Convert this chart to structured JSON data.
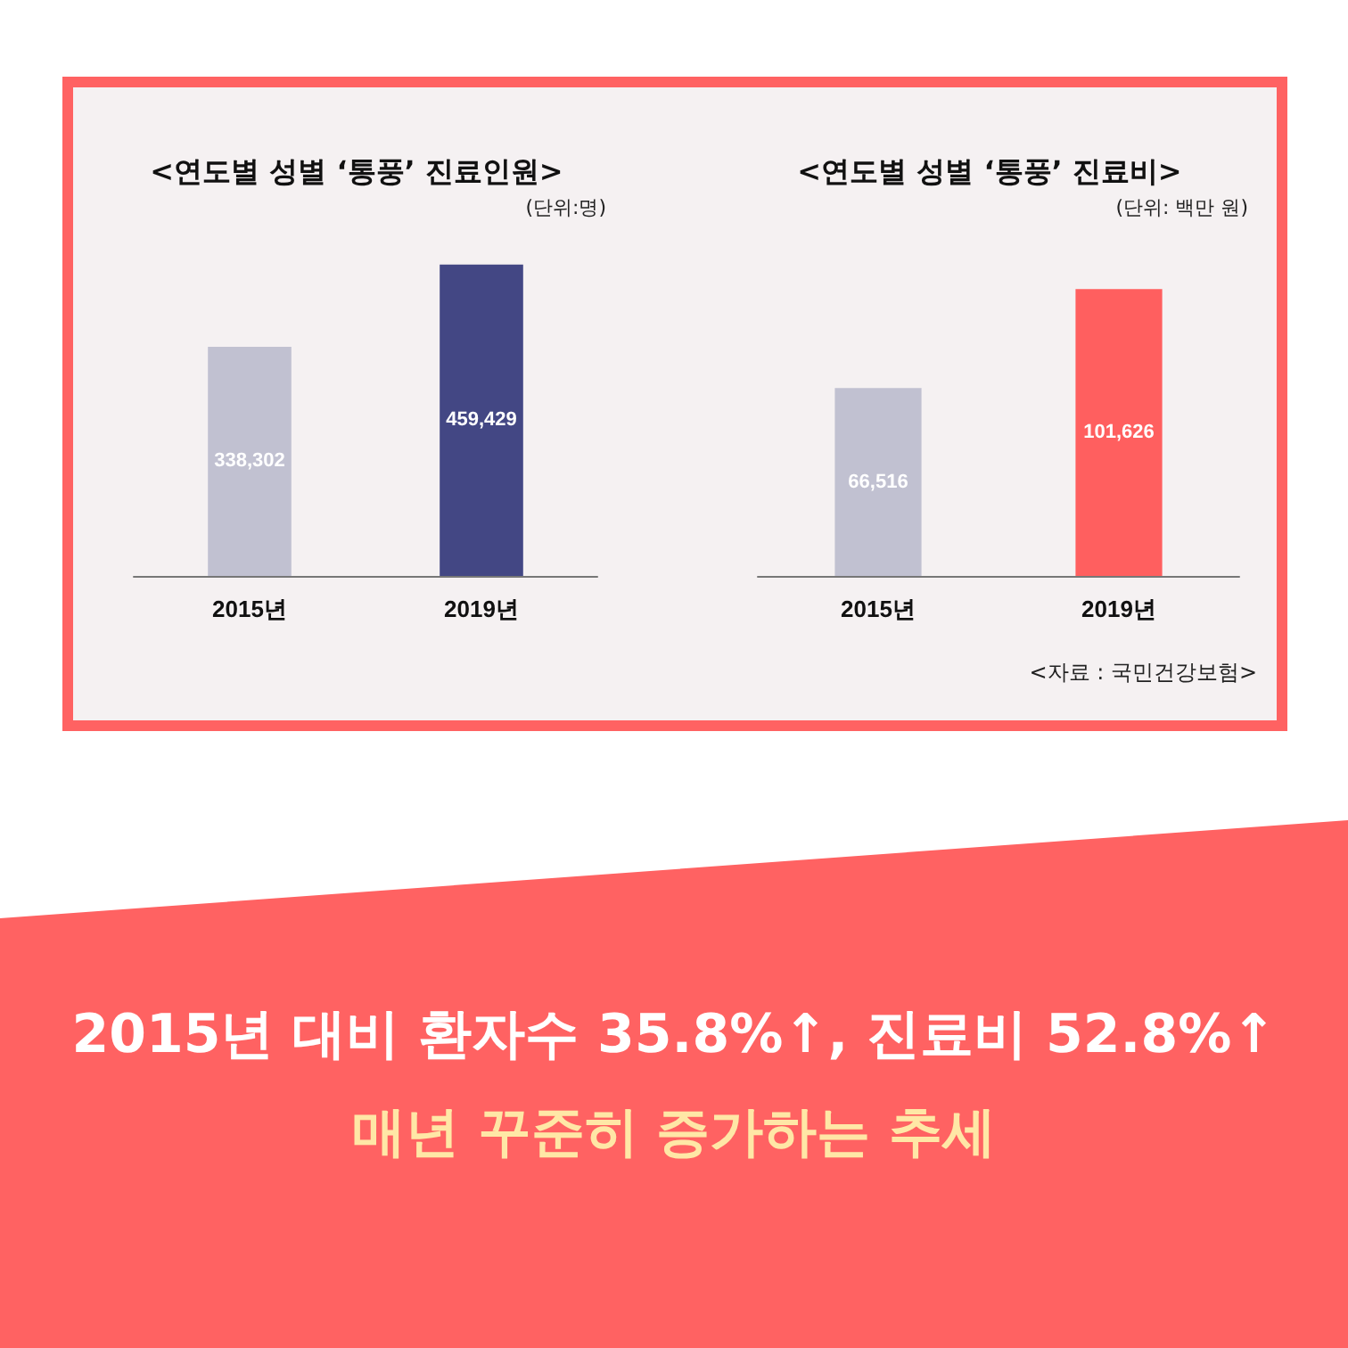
{
  "chart_data": [
    {
      "type": "bar",
      "title": "<연도별 성별 ‘통풍’ 진료인원>",
      "subtitle": "(단위:명)",
      "categories": [
        "2015년",
        "2019년"
      ],
      "values": [
        338302,
        459429
      ],
      "colors": [
        "#c1c1d1",
        "#434784"
      ],
      "value_labels": [
        "338,302",
        "459,429"
      ]
    },
    {
      "type": "bar",
      "title": "<연도별 성별 ‘통풍’ 진료비>",
      "subtitle": "(단위: 백만 원)",
      "categories": [
        "2015년",
        "2019년"
      ],
      "values": [
        66516,
        101626
      ],
      "colors": [
        "#c1c1d1",
        "#ff5f5f"
      ],
      "value_labels": [
        "66,516",
        "101,626"
      ],
      "annotations": [
        "<자료 : 국민건강보험>"
      ]
    },
    {
      "type": "other",
      "annotations": [
        "2015년 대비 환자수 35.8%↑, 진료비 52.8%↑",
        "매년 꾸준히 증가하는 추세"
      ]
    }
  ]
}
